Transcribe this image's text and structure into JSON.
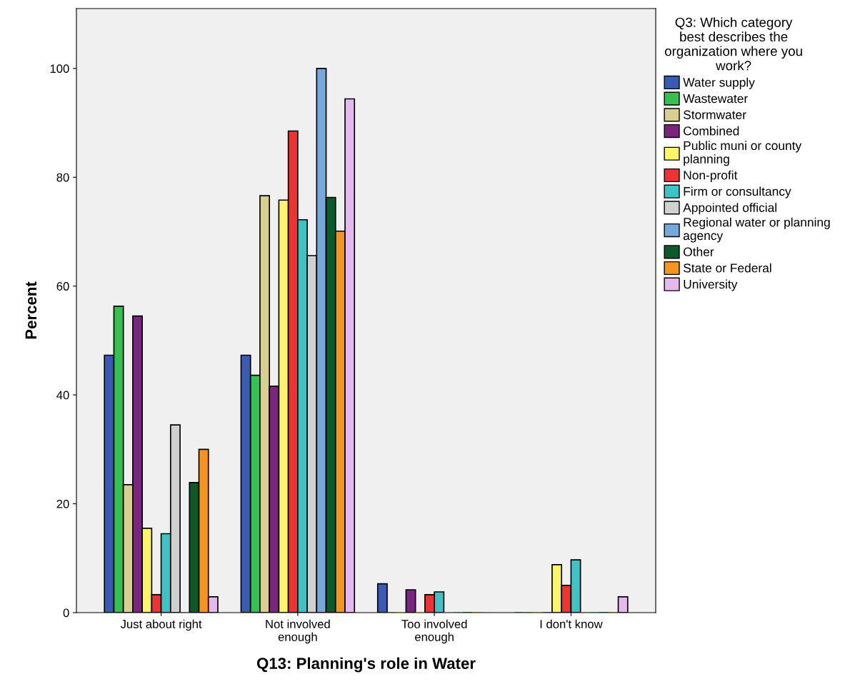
{
  "chart_data": {
    "type": "bar",
    "xlabel": "Q13: Planning's role in Water",
    "ylabel": "Percent",
    "legend_title": "Q3: Which category\nbest describes the\norganization where you\nwork?",
    "categories": [
      "Just about right",
      "Not involved\nenough",
      "Too involved\nenough",
      "I don't know"
    ],
    "series": [
      {
        "name": "Water supply",
        "color": "#3a5bb5",
        "values": [
          47.3,
          47.3,
          5.3,
          0
        ]
      },
      {
        "name": "Wastewater",
        "color": "#35c14f",
        "values": [
          56.3,
          43.6,
          0,
          0
        ]
      },
      {
        "name": "Stormwater",
        "color": "#d8d08e",
        "values": [
          23.5,
          76.6,
          0,
          0
        ]
      },
      {
        "name": "Combined",
        "color": "#7a2580",
        "values": [
          54.5,
          41.6,
          4.2,
          0
        ]
      },
      {
        "name": "Public muni or county\nplanning",
        "color": "#fcf56a",
        "values": [
          15.5,
          75.8,
          0,
          8.8
        ]
      },
      {
        "name": "Non-profit",
        "color": "#f03232",
        "values": [
          3.3,
          88.5,
          3.3,
          5.0
        ]
      },
      {
        "name": "Firm or consultancy",
        "color": "#3ec2c4",
        "values": [
          14.5,
          72.2,
          3.8,
          9.7
        ]
      },
      {
        "name": "Appointed official",
        "color": "#d0d0d0",
        "values": [
          34.5,
          65.6,
          0,
          0
        ]
      },
      {
        "name": "Regional water or planning\nagency",
        "color": "#77a8dc",
        "values": [
          0,
          100,
          0,
          0
        ]
      },
      {
        "name": "Other",
        "color": "#0c5a2a",
        "values": [
          23.9,
          76.3,
          0,
          0
        ]
      },
      {
        "name": "State or Federal",
        "color": "#f7941d",
        "values": [
          30.0,
          70.1,
          0,
          0
        ]
      },
      {
        "name": "University",
        "color": "#e6b8f0",
        "values": [
          2.9,
          94.4,
          0,
          2.9
        ]
      }
    ],
    "ylim": [
      0,
      111
    ],
    "yticks": [
      0,
      20,
      40,
      60,
      80,
      100
    ],
    "grid": false,
    "legend": "right"
  }
}
